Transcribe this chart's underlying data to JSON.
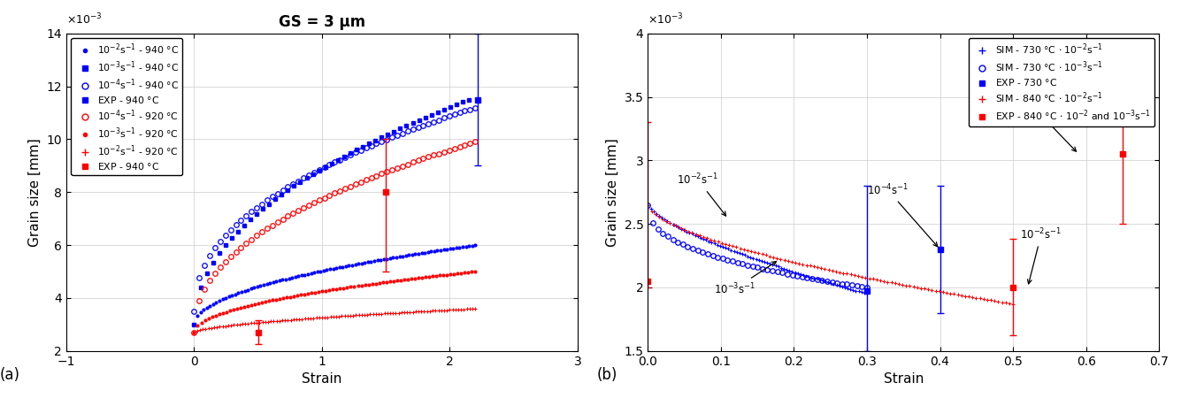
{
  "left": {
    "title": "GS = 3 μm",
    "xlabel": "Strain",
    "ylabel": "Grain size [mm]",
    "xlim": [
      -1,
      3
    ],
    "ylim": [
      0.002,
      0.014
    ],
    "ytick_vals": [
      0.002,
      0.004,
      0.006,
      0.008,
      0.01,
      0.012,
      0.014
    ],
    "ytick_labels": [
      "2",
      "4",
      "6",
      "8",
      "10",
      "12",
      "14"
    ],
    "xticks": [
      -1,
      0,
      1,
      2,
      3
    ],
    "label": "(a)"
  },
  "right": {
    "xlabel": "Strain",
    "ylabel": "Grain size [mm]",
    "xlim": [
      0,
      0.7
    ],
    "ylim": [
      0.0015,
      0.004
    ],
    "ytick_vals": [
      0.0015,
      0.002,
      0.0025,
      0.003,
      0.0035,
      0.004
    ],
    "ytick_labels": [
      "1.5",
      "2",
      "2.5",
      "3",
      "3.5",
      "4"
    ],
    "xticks": [
      0,
      0.1,
      0.2,
      0.3,
      0.4,
      0.5,
      0.6,
      0.7
    ],
    "label": "(b)"
  }
}
